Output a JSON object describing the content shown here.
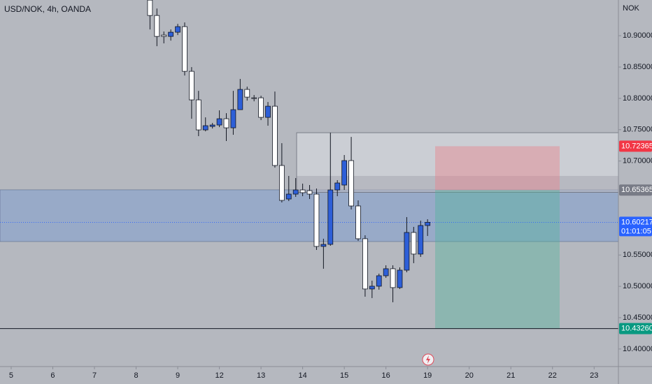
{
  "chart_data": {
    "type": "candlestick",
    "title": "USD/NOK, 4h, OANDA",
    "currency": "NOK",
    "x": [
      20,
      21,
      22,
      23,
      24,
      25,
      26,
      27,
      28,
      29,
      30,
      31,
      32,
      33,
      34,
      35,
      36,
      37,
      38,
      39,
      40,
      41,
      42,
      43,
      44,
      45,
      46,
      47,
      48,
      49,
      50,
      51,
      52,
      53,
      54,
      55,
      56,
      57,
      58,
      59,
      60
    ],
    "open": [
      10.9568,
      10.9323,
      10.9011,
      10.8989,
      10.9056,
      10.9145,
      10.8432,
      10.7976,
      10.7497,
      10.7552,
      10.7575,
      10.7675,
      10.753,
      10.782,
      10.8143,
      10.8009,
      10.8009,
      10.7697,
      10.7875,
      10.6929,
      10.6394,
      10.6472,
      10.6539,
      10.6528,
      10.6472,
      10.5637,
      10.567,
      10.6539,
      10.6617,
      10.7007,
      10.6283,
      10.576,
      10.4958,
      10.5002,
      10.5169,
      10.5281,
      10.498,
      10.5258,
      10.586,
      10.5515,
      10.5971
    ],
    "high": [
      10.9568,
      10.9434,
      10.9067,
      10.91,
      10.9189,
      10.9212,
      10.8499,
      10.812,
      10.7697,
      10.7608,
      10.7809,
      10.7764,
      10.812,
      10.831,
      10.8187,
      10.8054,
      10.8042,
      10.7942,
      10.8109,
      10.7285,
      10.6762,
      10.6728,
      10.6639,
      10.6617,
      10.6561,
      10.576,
      10.7452,
      10.6695,
      10.7096,
      10.7385,
      10.6372,
      10.5815,
      10.5091,
      10.5203,
      10.5336,
      10.5336,
      10.5303,
      10.6105,
      10.5949,
      10.6049,
      10.6071
    ],
    "low": [
      10.91,
      10.8833,
      10.8878,
      10.8922,
      10.9011,
      10.8365,
      10.7675,
      10.7397,
      10.7474,
      10.7519,
      10.7541,
      10.7319,
      10.7419,
      10.782,
      10.7965,
      10.7953,
      10.7653,
      10.7564,
      10.6895,
      10.6339,
      10.6361,
      10.6428,
      10.6439,
      10.6394,
      10.5581,
      10.5281,
      10.5648,
      10.6439,
      10.6539,
      10.6227,
      10.5726,
      10.4835,
      10.4813,
      10.4947,
      10.5136,
      10.4746,
      10.4958,
      10.5225,
      10.537,
      10.547,
      10.5804
    ],
    "close": [
      10.9323,
      10.8989,
      10.8989,
      10.9056,
      10.9145,
      10.8432,
      10.7976,
      10.7497,
      10.7564,
      10.7575,
      10.7675,
      10.753,
      10.782,
      10.8143,
      10.802,
      10.7998,
      10.7697,
      10.7875,
      10.6929,
      10.6372,
      10.6472,
      10.6539,
      10.6495,
      10.6472,
      10.5637,
      10.567,
      10.6539,
      10.665,
      10.7007,
      10.6283,
      10.576,
      10.4958,
      10.5002,
      10.5169,
      10.5281,
      10.498,
      10.5258,
      10.586,
      10.5515,
      10.5971,
      10.6022
    ],
    "up_color": "#2d5fd8",
    "down_color": "#ffffff",
    "xlim": [
      -1.61,
      87.5
    ],
    "ylim": [
      10.372,
      10.957
    ],
    "xticks": [
      {
        "value": 0,
        "label": "5"
      },
      {
        "value": 6,
        "label": "6"
      },
      {
        "value": 12,
        "label": "7"
      },
      {
        "value": 18,
        "label": "8"
      },
      {
        "value": 24,
        "label": "9"
      },
      {
        "value": 30,
        "label": "12"
      },
      {
        "value": 36,
        "label": "13"
      },
      {
        "value": 42,
        "label": "14"
      },
      {
        "value": 48,
        "label": "15"
      },
      {
        "value": 54,
        "label": "16"
      },
      {
        "value": 60,
        "label": "19"
      },
      {
        "value": 66,
        "label": "20"
      },
      {
        "value": 72,
        "label": "21"
      },
      {
        "value": 78,
        "label": "22"
      },
      {
        "value": 84,
        "label": "23"
      }
    ],
    "yticks": [
      {
        "value": 10.9,
        "label": "10.90000"
      },
      {
        "value": 10.85,
        "label": "10.85000"
      },
      {
        "value": 10.8,
        "label": "10.80000"
      },
      {
        "value": 10.75,
        "label": "10.75000"
      },
      {
        "value": 10.7,
        "label": "10.70000"
      },
      {
        "value": 10.55,
        "label": "10.55000"
      },
      {
        "value": 10.5,
        "label": "10.50000"
      },
      {
        "value": 10.45,
        "label": "10.45000"
      },
      {
        "value": 10.4,
        "label": "10.40000"
      }
    ],
    "demand_zone": [
      10.654,
      10.5715
    ],
    "supply_box": [
      10.7452,
      10.65
    ],
    "target": 10.4326,
    "price_labels": [
      {
        "value": 10.72365,
        "label": "10.72365",
        "color": "#f23645"
      },
      {
        "value": 10.65365,
        "label": "10.65365",
        "color": "#787b86"
      },
      {
        "value": 10.60217,
        "label": "10.60217",
        "color": "#2962ff",
        "countdown": "01:01:05"
      },
      {
        "value": 10.4326,
        "label": "10.43260",
        "color": "#089981"
      }
    ]
  }
}
